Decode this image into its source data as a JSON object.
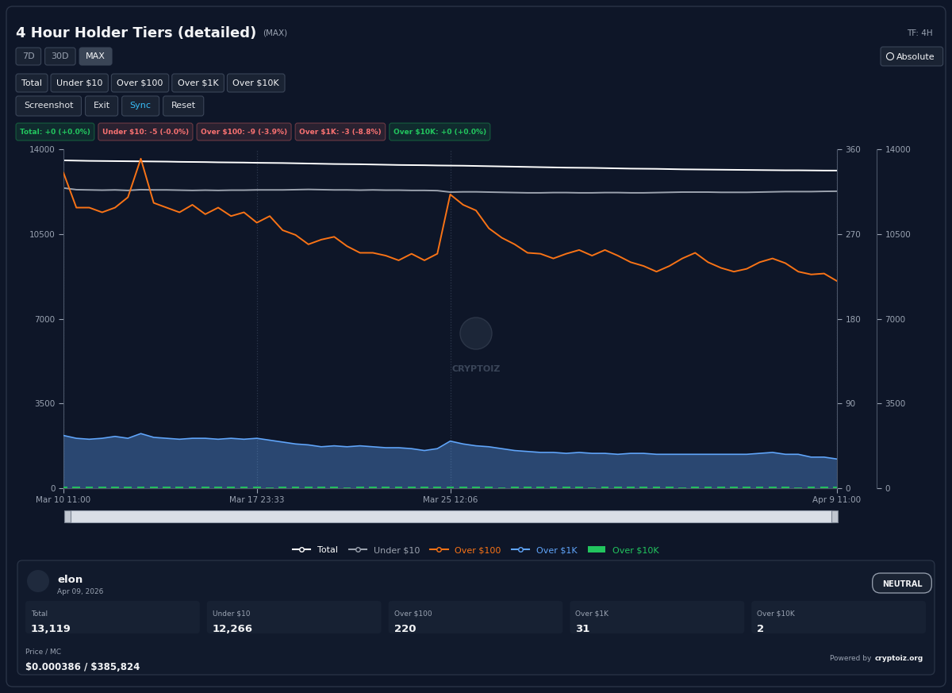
{
  "header": {
    "title": "4 Hour Holder Tiers (detailed)",
    "range_label": "(MAX)",
    "timeframe": "TF: 4H",
    "mode_button": "Absolute"
  },
  "controls": {
    "ranges": [
      "7D",
      "30D",
      "MAX"
    ],
    "active_range": "MAX",
    "tiers": [
      "Total",
      "Under $10",
      "Over $100",
      "Over $1K",
      "Over $10K"
    ],
    "actions": [
      {
        "label": "Screenshot",
        "color": "#e5e7eb"
      },
      {
        "label": "Exit",
        "color": "#e5e7eb"
      },
      {
        "label": "Sync",
        "color": "#38bdf8"
      },
      {
        "label": "Reset",
        "color": "#e5e7eb"
      }
    ]
  },
  "changes": [
    {
      "text": "Total: +0 (+0.0%)",
      "color": "#22c55e"
    },
    {
      "text": "Under $10: -5 (-0.0%)",
      "color": "#f87171"
    },
    {
      "text": "Over $100: -9 (-3.9%)",
      "color": "#f87171"
    },
    {
      "text": "Over $1K: -3 (-8.8%)",
      "color": "#f87171"
    },
    {
      "text": "Over $10K: +0 (+0.0%)",
      "color": "#22c55e"
    }
  ],
  "watermark": "CRYPTOIZ",
  "chart_data": {
    "type": "line",
    "x": [
      0,
      1,
      2,
      3,
      4,
      5,
      6,
      7,
      8,
      9,
      10,
      11,
      12,
      13,
      14,
      15,
      16,
      17,
      18,
      19,
      20,
      21,
      22,
      23,
      24,
      25,
      26,
      27,
      28,
      29,
      30,
      31,
      32,
      33,
      34,
      35,
      36,
      37,
      38,
      39,
      40,
      41,
      42,
      43,
      44,
      45,
      46,
      47,
      48,
      49,
      50,
      51,
      52,
      53,
      54,
      55,
      56,
      57,
      58,
      59,
      60
    ],
    "xlim": [
      0,
      60
    ],
    "xticks": [
      {
        "value": 0,
        "label": "Mar 10 11:00"
      },
      {
        "value": 15,
        "label": "Mar 17 23:33"
      },
      {
        "value": 30,
        "label": "Mar 25 12:06"
      },
      {
        "value": 60,
        "label": "Apr 9 11:00"
      }
    ],
    "ylim": [
      0,
      14000
    ],
    "yticks": [
      0,
      3500,
      7000,
      10500,
      14000
    ],
    "y2lim": [
      0,
      360
    ],
    "y2ticks": [
      0,
      90,
      180,
      270,
      360
    ],
    "y3lim": [
      0,
      14000
    ],
    "y3ticks": [
      0,
      3500,
      7000,
      10500,
      14000
    ],
    "grid": "x",
    "legend": "upper center",
    "series": [
      {
        "name": "Total",
        "color": "#ffffff",
        "type": "line",
        "values": [
          13540,
          13530,
          13520,
          13515,
          13510,
          13505,
          13500,
          13495,
          13490,
          13480,
          13475,
          13470,
          13460,
          13455,
          13450,
          13440,
          13435,
          13430,
          13420,
          13410,
          13400,
          13390,
          13385,
          13380,
          13370,
          13360,
          13350,
          13345,
          13340,
          13330,
          13325,
          13320,
          13310,
          13300,
          13290,
          13280,
          13270,
          13260,
          13250,
          13240,
          13235,
          13230,
          13220,
          13210,
          13200,
          13195,
          13190,
          13180,
          13170,
          13165,
          13160,
          13155,
          13150,
          13145,
          13140,
          13135,
          13130,
          13130,
          13125,
          13120,
          13119
        ]
      },
      {
        "name": "Under $10",
        "color": "#9ca3af",
        "type": "line",
        "values": [
          12400,
          12330,
          12320,
          12310,
          12320,
          12300,
          12330,
          12320,
          12320,
          12310,
          12300,
          12310,
          12300,
          12310,
          12310,
          12320,
          12320,
          12320,
          12330,
          12340,
          12330,
          12320,
          12320,
          12310,
          12320,
          12310,
          12310,
          12300,
          12300,
          12290,
          12230,
          12240,
          12240,
          12230,
          12220,
          12210,
          12200,
          12200,
          12210,
          12210,
          12200,
          12200,
          12210,
          12210,
          12200,
          12200,
          12210,
          12220,
          12230,
          12230,
          12230,
          12220,
          12220,
          12220,
          12230,
          12240,
          12250,
          12250,
          12250,
          12260,
          12266
        ]
      },
      {
        "name": "Over $100",
        "color": "#f97316",
        "type": "line",
        "axis": "y2",
        "values": [
          335,
          298,
          298,
          293,
          298,
          309,
          350,
          303,
          298,
          293,
          301,
          291,
          298,
          289,
          293,
          282,
          289,
          274,
          269,
          259,
          264,
          267,
          257,
          250,
          250,
          247,
          242,
          249,
          242,
          249,
          312,
          301,
          295,
          276,
          266,
          259,
          250,
          249,
          244,
          249,
          253,
          247,
          253,
          247,
          240,
          236,
          230,
          236,
          244,
          250,
          240,
          234,
          230,
          233,
          240,
          244,
          239,
          230,
          227,
          228,
          220
        ]
      },
      {
        "name": "Over $1K",
        "color": "#60a5fa",
        "type": "area",
        "axis": "y2",
        "values": [
          56,
          53,
          52,
          53,
          55,
          53,
          58,
          54,
          53,
          52,
          53,
          53,
          52,
          53,
          52,
          53,
          51,
          49,
          47,
          46,
          44,
          45,
          44,
          45,
          44,
          43,
          43,
          42,
          40,
          42,
          50,
          47,
          45,
          44,
          42,
          40,
          39,
          38,
          38,
          37,
          38,
          37,
          37,
          36,
          37,
          37,
          36,
          36,
          36,
          36,
          36,
          36,
          36,
          36,
          37,
          38,
          36,
          36,
          33,
          33,
          31
        ]
      },
      {
        "name": "Over $10K",
        "color": "#22c55e",
        "type": "bar",
        "axis": "y2",
        "values": [
          2,
          2,
          2,
          2,
          2,
          2,
          2,
          2,
          2,
          2,
          2,
          2,
          2,
          2,
          2,
          2,
          1,
          2,
          2,
          2,
          2,
          2,
          1,
          2,
          2,
          2,
          2,
          2,
          2,
          2,
          2,
          2,
          2,
          2,
          1,
          2,
          2,
          2,
          2,
          2,
          2,
          1,
          2,
          2,
          2,
          2,
          2,
          2,
          1,
          2,
          2,
          2,
          2,
          2,
          2,
          2,
          2,
          1,
          2,
          2,
          2
        ]
      }
    ]
  },
  "card": {
    "name": "elon",
    "date": "Apr 09, 2026",
    "sentiment": "NEUTRAL",
    "stats": [
      {
        "label": "Total",
        "value": "13,119"
      },
      {
        "label": "Under $10",
        "value": "12,266"
      },
      {
        "label": "Over $100",
        "value": "220"
      },
      {
        "label": "Over $1K",
        "value": "31"
      },
      {
        "label": "Over $10K",
        "value": "2"
      }
    ],
    "price_label": "Price / MC",
    "price": "$0.000386 / $385,824",
    "footer": {
      "prefix": "Powered by",
      "link": "cryptoiz.org"
    }
  }
}
